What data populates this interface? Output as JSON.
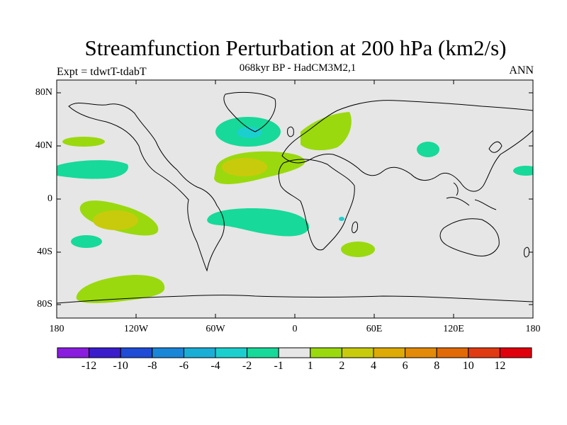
{
  "title": "Streamfunction Perturbation at 200 hPa (km2/s)",
  "subtitle": "068kyr BP - HadCM3M2,1",
  "experiment": "Expt = tdwtT-tdabT",
  "season": "ANN",
  "axes": {
    "lat_labels": [
      "80N",
      "40N",
      "0",
      "40S",
      "80S"
    ],
    "lon_labels": [
      "180",
      "120W",
      "60W",
      "0",
      "60E",
      "120E",
      "180"
    ]
  },
  "colorbar": {
    "colors": [
      "#8a1ce0",
      "#3a1ccc",
      "#1f4bd6",
      "#1a86d8",
      "#1aaed6",
      "#1ccfcf",
      "#17d999",
      "#e6e6e6",
      "#9ad90e",
      "#c8cb0c",
      "#ddaa06",
      "#e38a08",
      "#e26a06",
      "#e03a12",
      "#e0000c"
    ],
    "labels": [
      "-12",
      "-10",
      "-8",
      "-6",
      "-4",
      "-2",
      "-1",
      "1",
      "2",
      "4",
      "6",
      "8",
      "10",
      "12"
    ]
  },
  "chart_data": {
    "type": "map_contour",
    "variable": "Streamfunction Perturbation at 200 hPa",
    "units": "km2/s",
    "lon_range": [
      -180,
      180
    ],
    "lat_range": [
      -90,
      90
    ],
    "levels": [
      -12,
      -10,
      -8,
      -6,
      -4,
      -2,
      -1,
      1,
      2,
      4,
      6,
      8,
      10,
      12
    ],
    "anomalies": [
      {
        "name": "north-atlantic-negative",
        "lon": -35,
        "lat": 52,
        "value": -4
      },
      {
        "name": "subtropical-atlantic-positive",
        "lon": -35,
        "lat": 25,
        "value": 4
      },
      {
        "name": "europe-positive",
        "lon": 30,
        "lat": 50,
        "value": 2
      },
      {
        "name": "south-atlantic-negative",
        "lon": -20,
        "lat": -18,
        "value": -2
      },
      {
        "name": "south-pacific-positive",
        "lon": -135,
        "lat": -15,
        "value": 4
      },
      {
        "name": "southern-ocean-positive",
        "lon": -135,
        "lat": -68,
        "value": 2
      },
      {
        "name": "indian-ocean-positive",
        "lon": 58,
        "lat": -37,
        "value": 2
      },
      {
        "name": "east-pacific-negative",
        "lon": -165,
        "lat": 22,
        "value": -2
      },
      {
        "name": "north-pacific-positive",
        "lon": -160,
        "lat": 45,
        "value": 2
      },
      {
        "name": "asia-negative",
        "lon": 103,
        "lat": 38,
        "value": -2
      },
      {
        "name": "west-pacific-negative",
        "lon": 172,
        "lat": 22,
        "value": -2
      },
      {
        "name": "south-pacific-negative",
        "lon": -150,
        "lat": -32,
        "value": -2
      },
      {
        "name": "africa-negative",
        "lon": 35,
        "lat": -16,
        "value": -2
      }
    ]
  }
}
